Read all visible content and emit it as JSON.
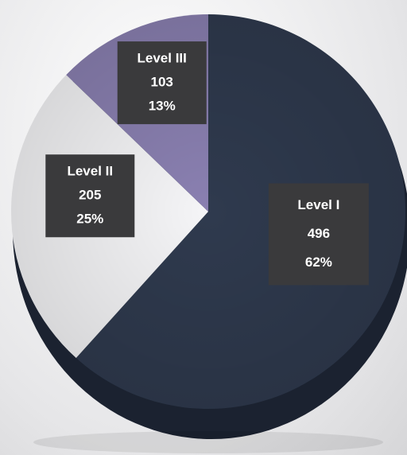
{
  "chart_data": {
    "type": "pie",
    "categories": [
      "Level I",
      "Level II",
      "Level III"
    ],
    "values": [
      496,
      205,
      103
    ],
    "percent_labels": [
      "62%",
      "25%",
      "13%"
    ],
    "colors": [
      "#2f3a4e",
      "#f5f5f7",
      "#8a80b1"
    ]
  }
}
